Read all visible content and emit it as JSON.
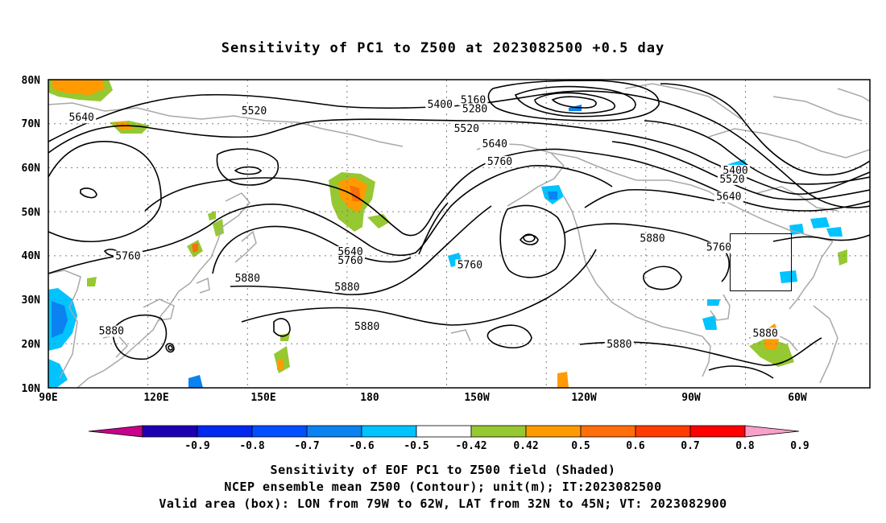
{
  "title": "Sensitivity of PC1 to Z500 at 2023082500 +0.5 day",
  "map": {
    "lon_range": [
      90,
      337.5
    ],
    "lat_range": [
      10,
      80
    ],
    "lat_ticks": [
      "10N",
      "20N",
      "30N",
      "40N",
      "50N",
      "60N",
      "70N",
      "80N"
    ],
    "lon_ticks": [
      "90E",
      "120E",
      "150E",
      "180",
      "150W",
      "120W",
      "90W",
      "60W"
    ],
    "grid": "dotted",
    "coastline_color": "#a8a8a8",
    "contour_color": "#000000"
  },
  "contour_labels": [
    {
      "text": "5640",
      "lon": 100,
      "lat": 71
    },
    {
      "text": "5520",
      "lon": 152,
      "lat": 72.5
    },
    {
      "text": "5400",
      "lon": 208,
      "lat": 74
    },
    {
      "text": "5160",
      "lon": 218,
      "lat": 75
    },
    {
      "text": "5280",
      "lon": 218.5,
      "lat": 73
    },
    {
      "text": "5520",
      "lon": 216,
      "lat": 68.5
    },
    {
      "text": "5640",
      "lon": 224.5,
      "lat": 65
    },
    {
      "text": "5760",
      "lon": 226,
      "lat": 61
    },
    {
      "text": "5400",
      "lon": 297,
      "lat": 59
    },
    {
      "text": "5520",
      "lon": 296,
      "lat": 57
    },
    {
      "text": "5640",
      "lon": 295,
      "lat": 53
    },
    {
      "text": "5880",
      "lon": 272,
      "lat": 43.5
    },
    {
      "text": "5760",
      "lon": 292,
      "lat": 41.5
    },
    {
      "text": "5640",
      "lon": 181,
      "lat": 40.5
    },
    {
      "text": "5760",
      "lon": 114,
      "lat": 39.5
    },
    {
      "text": "5760",
      "lon": 181,
      "lat": 38.5
    },
    {
      "text": "5760",
      "lon": 217,
      "lat": 37.5
    },
    {
      "text": "5880",
      "lon": 150,
      "lat": 34.5
    },
    {
      "text": "5880",
      "lon": 180,
      "lat": 32.5
    },
    {
      "text": "5880",
      "lon": 186,
      "lat": 23.5
    },
    {
      "text": "5880",
      "lon": 109,
      "lat": 22.5
    },
    {
      "text": "5880",
      "lon": 306,
      "lat": 22
    },
    {
      "text": "5880",
      "lon": 262,
      "lat": 19.5
    }
  ],
  "colorbar": {
    "labels": [
      "-0.9",
      "-0.8",
      "-0.7",
      "-0.6",
      "-0.5",
      "-0.42",
      "0.42",
      "0.5",
      "0.6",
      "0.7",
      "0.8",
      "0.9"
    ],
    "colors": [
      "#c8008c",
      "#1e00b4",
      "#0028f0",
      "#0050ff",
      "#0a82f0",
      "#00c3ff",
      "#ffffff",
      "#96c832",
      "#ff9b00",
      "#ff6e0a",
      "#ff3c00",
      "#ff0000",
      "#f7a0c8"
    ]
  },
  "caption": [
    "Sensitivity of EOF PC1 to Z500 field (Shaded)",
    "NCEP ensemble mean Z500 (Contour); unit(m); IT:2023082500",
    "Valid area (box): LON from 79W to 62W, LAT from 32N to 45N; VT: 2023082900"
  ]
}
